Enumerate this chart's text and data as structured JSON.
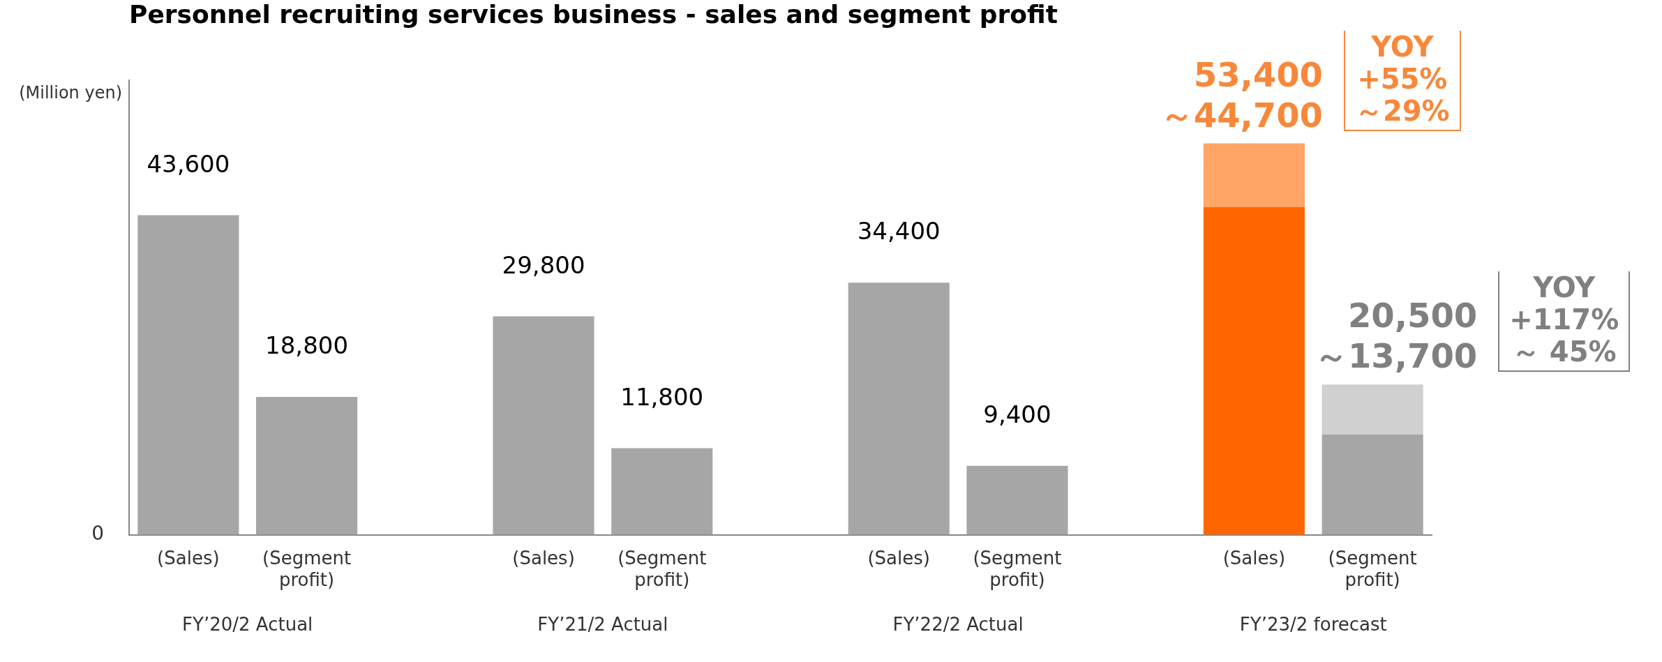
{
  "chart_data": {
    "type": "bar",
    "title": "Personnel recruiting services business - sales and segment profit",
    "ylabel": "(Million yen)",
    "categories": [
      "(Sales)",
      "(Segment profit)",
      null,
      "(Sales)",
      "(Segment profit)",
      null,
      "(Sales)",
      "(Segment profit)",
      null,
      "(Sales)",
      "(Segment profit)"
    ],
    "stacked": true,
    "series": [
      {
        "colors": [
          "#a6a6a6",
          "#a6a6a6",
          null,
          "#a6a6a6",
          "#a6a6a6",
          null,
          "#a6a6a6",
          "#a6a6a6",
          null,
          "#ff6600",
          "#a6a6a6"
        ],
        "values": [
          43600,
          18800,
          null,
          29800,
          11800,
          null,
          34400,
          9400,
          null,
          44700,
          13700
        ],
        "value_labels": [
          "43,600",
          "18,800",
          null,
          "29,800",
          "11,800",
          null,
          "34,400",
          "9,400",
          null,
          "～44,700",
          "～13,700"
        ]
      },
      {
        "colors": [
          null,
          null,
          null,
          null,
          null,
          null,
          null,
          null,
          null,
          "#ffa566",
          "#d0d0d0"
        ],
        "values": [
          null,
          null,
          null,
          null,
          null,
          null,
          null,
          null,
          null,
          8700,
          6800
        ]
      }
    ],
    "totals": [
      null,
      null,
      null,
      null,
      null,
      null,
      null,
      null,
      null,
      "53,400",
      "20,500"
    ],
    "ylim": [
      0,
      62000
    ],
    "grid": false,
    "legend": false,
    "annotations": [
      "0",
      "FY’20/2 Actual",
      "FY’21/2 Actual",
      "FY’22/2 Actual",
      "FY’23/2 forecast",
      "YOY\n+55%\n～29%",
      "YOY\n+117%\n～ 45%"
    ]
  }
}
